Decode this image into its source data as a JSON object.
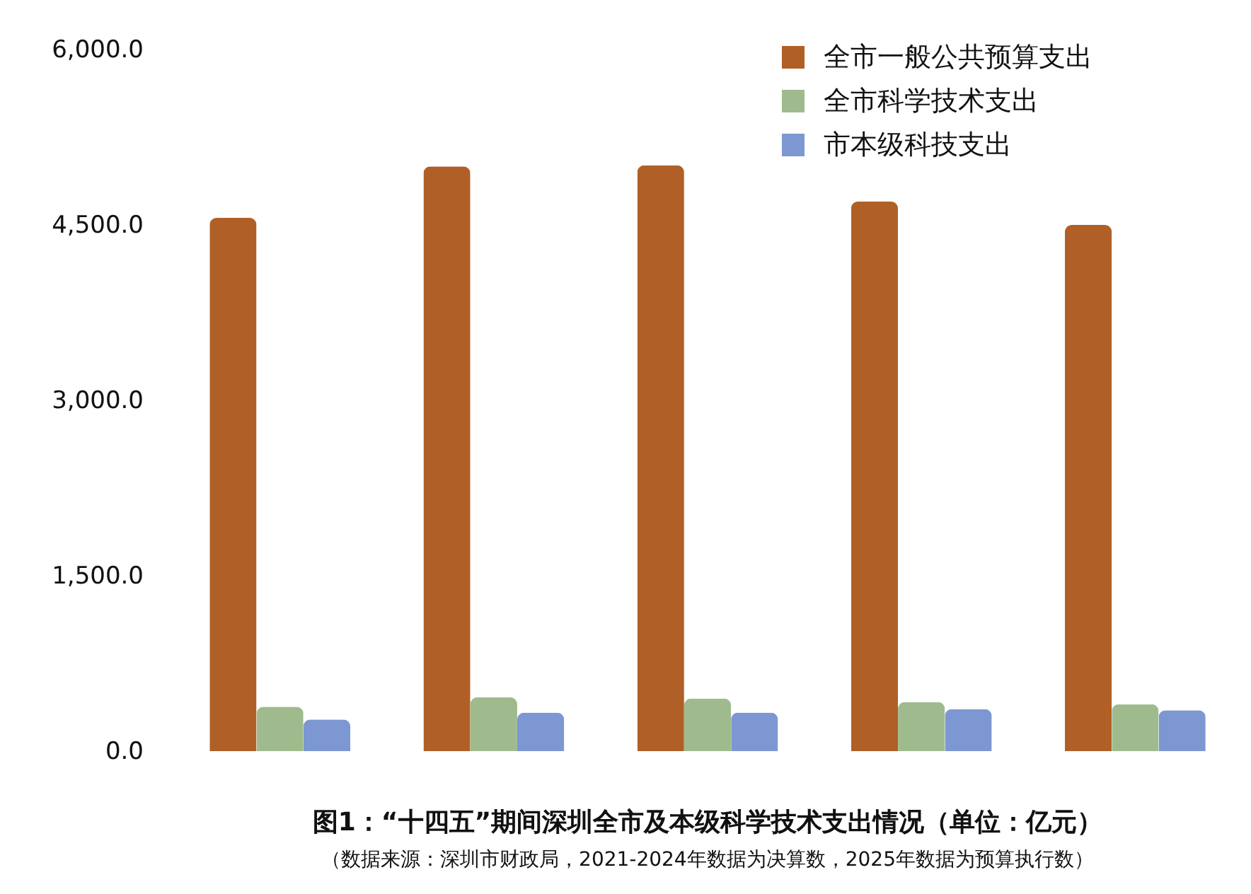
{
  "chart_data": {
    "type": "bar",
    "title": "图1：“十四五”期间深圳全市及本级科学技术支出情况（单位：亿元）",
    "annotations": [
      "（数据来源：深圳市财政局，2021-2024年数据为决算数，2025年数据为预算执行数）"
    ],
    "categories": [
      null,
      null,
      null,
      null,
      null
    ],
    "series": [
      {
        "name": "全市一般公共预算支出",
        "color": "#b06026",
        "values": [
          4560,
          5000,
          5010,
          4700,
          4500
        ]
      },
      {
        "name": "全市科学技术支出",
        "color": "#9fbb8e",
        "values": [
          380,
          460,
          450,
          420,
          400
        ]
      },
      {
        "name": "市本级科技支出",
        "color": "#7d97d2",
        "values": [
          270,
          330,
          330,
          360,
          350
        ]
      }
    ],
    "ylim": [
      0,
      6000
    ],
    "yticks": [
      {
        "value": 0,
        "label": "0.0"
      },
      {
        "value": 1500,
        "label": "1,500.0"
      },
      {
        "value": 3000,
        "label": "3,000.0"
      },
      {
        "value": 4500,
        "label": "4,500.0"
      },
      {
        "value": 6000,
        "label": "6,000.0"
      }
    ],
    "tick_labels": "y",
    "legend": "top right"
  }
}
